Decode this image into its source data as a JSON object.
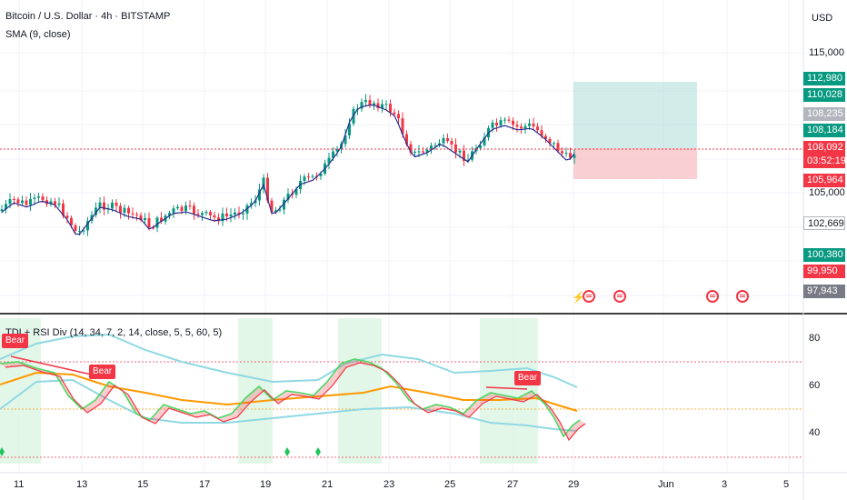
{
  "header": {
    "symbol_title": "Bitcoin / U.S. Dollar · 4h · BITSTAMP",
    "sma_title": "SMA (9, close)",
    "currency_label": "USD"
  },
  "price_axis": {
    "labels": [
      "115,000",
      "105,000",
      "102,669"
    ],
    "tags": [
      {
        "text": "112,980",
        "color": "#089981"
      },
      {
        "text": "110,028",
        "color": "#089981"
      },
      {
        "text": "108,235",
        "color": "#b2b5be"
      },
      {
        "text": "108,184",
        "color": "#089981"
      },
      {
        "text": "108,092",
        "color": "#f23645"
      },
      {
        "text": "03:52:19",
        "color": "#f23645"
      },
      {
        "text": "105,964",
        "color": "#f23645"
      },
      {
        "text": "102,669",
        "color": "#ffffff"
      },
      {
        "text": "100,380",
        "color": "#089981"
      },
      {
        "text": "99,950",
        "color": "#f23645"
      },
      {
        "text": "97,943",
        "color": "#787b86"
      }
    ]
  },
  "indicator": {
    "title": "TDI + RSI Div (14, 34, 7, 2, 14, close, 5, 5, 60, 5)",
    "axis_labels": [
      "80",
      "60",
      "40"
    ],
    "bear_labels": [
      "Bear",
      "Bear",
      "Bear"
    ]
  },
  "time_axis": {
    "labels": [
      "11",
      "13",
      "15",
      "17",
      "19",
      "21",
      "23",
      "25",
      "27",
      "29",
      "Jun",
      "3",
      "5"
    ]
  },
  "colors": {
    "up": "#089981",
    "down": "#f23645",
    "sma": "#2a2e8c",
    "tdi_green": "#4cd964",
    "tdi_red": "#f23645",
    "tdi_orange": "#ff9800",
    "bands": "#8fd9e3"
  },
  "event_icons": [
    "flag-us-icon",
    "flag-us-icon",
    "flag-us-icon",
    "flag-us-icon"
  ]
}
